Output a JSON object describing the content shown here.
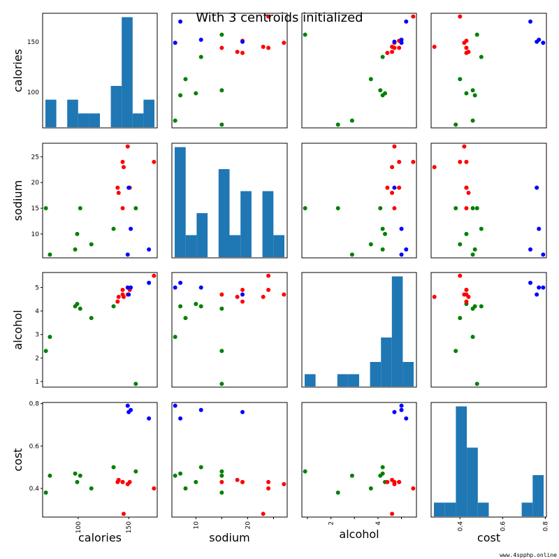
{
  "title": "With 3 centroids initialized",
  "watermark": "www.4spphp.online",
  "colors": {
    "hist": "#1f77b4",
    "cluster0": "#ff0000",
    "cluster1": "#008000",
    "cluster2": "#0000ff"
  },
  "chart_data": {
    "type": "scatter",
    "variables": [
      "calories",
      "sodium",
      "alcohol",
      "cost"
    ],
    "cluster_colors": [
      "red",
      "green",
      "blue"
    ],
    "ranges": {
      "calories": [
        68,
        175
      ],
      "sodium": [
        6,
        27
      ],
      "alcohol": [
        0.9,
        5.5
      ],
      "cost": [
        0.28,
        0.79
      ]
    },
    "ticks": {
      "calories": [
        100,
        150
      ],
      "sodium": [
        5,
        10,
        15,
        20,
        25
      ],
      "alcohol": [
        1,
        2,
        3,
        4,
        5
      ],
      "cost": [
        0.4,
        0.6,
        0.8
      ]
    },
    "bottom_tick_labels": {
      "calories": [
        "100",
        "150"
      ],
      "sodium": [
        "10",
        "20"
      ],
      "alcohol": [
        "2",
        "4"
      ],
      "cost": [
        "0.4",
        "0.6",
        "0.8"
      ]
    },
    "left_tick_labels": {
      "calories": [
        "100",
        "150"
      ],
      "sodium": [
        "10",
        "15",
        "20",
        "25"
      ],
      "alcohol": [
        "1",
        "2",
        "3",
        "4",
        "5"
      ],
      "cost": [
        "0.4",
        "0.6",
        "0.8"
      ]
    },
    "points": [
      {
        "calories": 144,
        "sodium": 15,
        "alcohol": 4.7,
        "cost": 0.43,
        "cluster": 0
      },
      {
        "calories": 151,
        "sodium": 19,
        "alcohol": 4.9,
        "cost": 0.43,
        "cluster": 0
      },
      {
        "calories": 157,
        "sodium": 15,
        "alcohol": 0.9,
        "cost": 0.48,
        "cluster": 1
      },
      {
        "calories": 170,
        "sodium": 7,
        "alcohol": 5.2,
        "cost": 0.73,
        "cluster": 2
      },
      {
        "calories": 152,
        "sodium": 11,
        "alcohol": 5.0,
        "cost": 0.77,
        "cluster": 2
      },
      {
        "calories": 145,
        "sodium": 23,
        "alcohol": 4.6,
        "cost": 0.28,
        "cluster": 0
      },
      {
        "calories": 175,
        "sodium": 24,
        "alcohol": 5.5,
        "cost": 0.4,
        "cluster": 0
      },
      {
        "calories": 149,
        "sodium": 27,
        "alcohol": 4.7,
        "cost": 0.42,
        "cluster": 0
      },
      {
        "calories": 99,
        "sodium": 10,
        "alcohol": 4.3,
        "cost": 0.43,
        "cluster": 1
      },
      {
        "calories": 113,
        "sodium": 8,
        "alcohol": 3.7,
        "cost": 0.4,
        "cluster": 1
      },
      {
        "calories": 140,
        "sodium": 18,
        "alcohol": 4.6,
        "cost": 0.44,
        "cluster": 0
      },
      {
        "calories": 102,
        "sodium": 15,
        "alcohol": 4.1,
        "cost": 0.46,
        "cluster": 1
      },
      {
        "calories": 135,
        "sodium": 11,
        "alcohol": 4.2,
        "cost": 0.5,
        "cluster": 1
      },
      {
        "calories": 150,
        "sodium": 19,
        "alcohol": 4.7,
        "cost": 0.76,
        "cluster": 2
      },
      {
        "calories": 149,
        "sodium": 6,
        "alcohol": 5.0,
        "cost": 0.79,
        "cluster": 2
      },
      {
        "calories": 68,
        "sodium": 15,
        "alcohol": 2.3,
        "cost": 0.38,
        "cluster": 1
      },
      {
        "calories": 139,
        "sodium": 19,
        "alcohol": 4.4,
        "cost": 0.43,
        "cluster": 0
      },
      {
        "calories": 144,
        "sodium": 24,
        "alcohol": 4.9,
        "cost": 0.43,
        "cluster": 0
      },
      {
        "calories": 72,
        "sodium": 6,
        "alcohol": 2.9,
        "cost": 0.46,
        "cluster": 1
      },
      {
        "calories": 97,
        "sodium": 7,
        "alcohol": 4.2,
        "cost": 0.47,
        "cluster": 1
      }
    ]
  }
}
